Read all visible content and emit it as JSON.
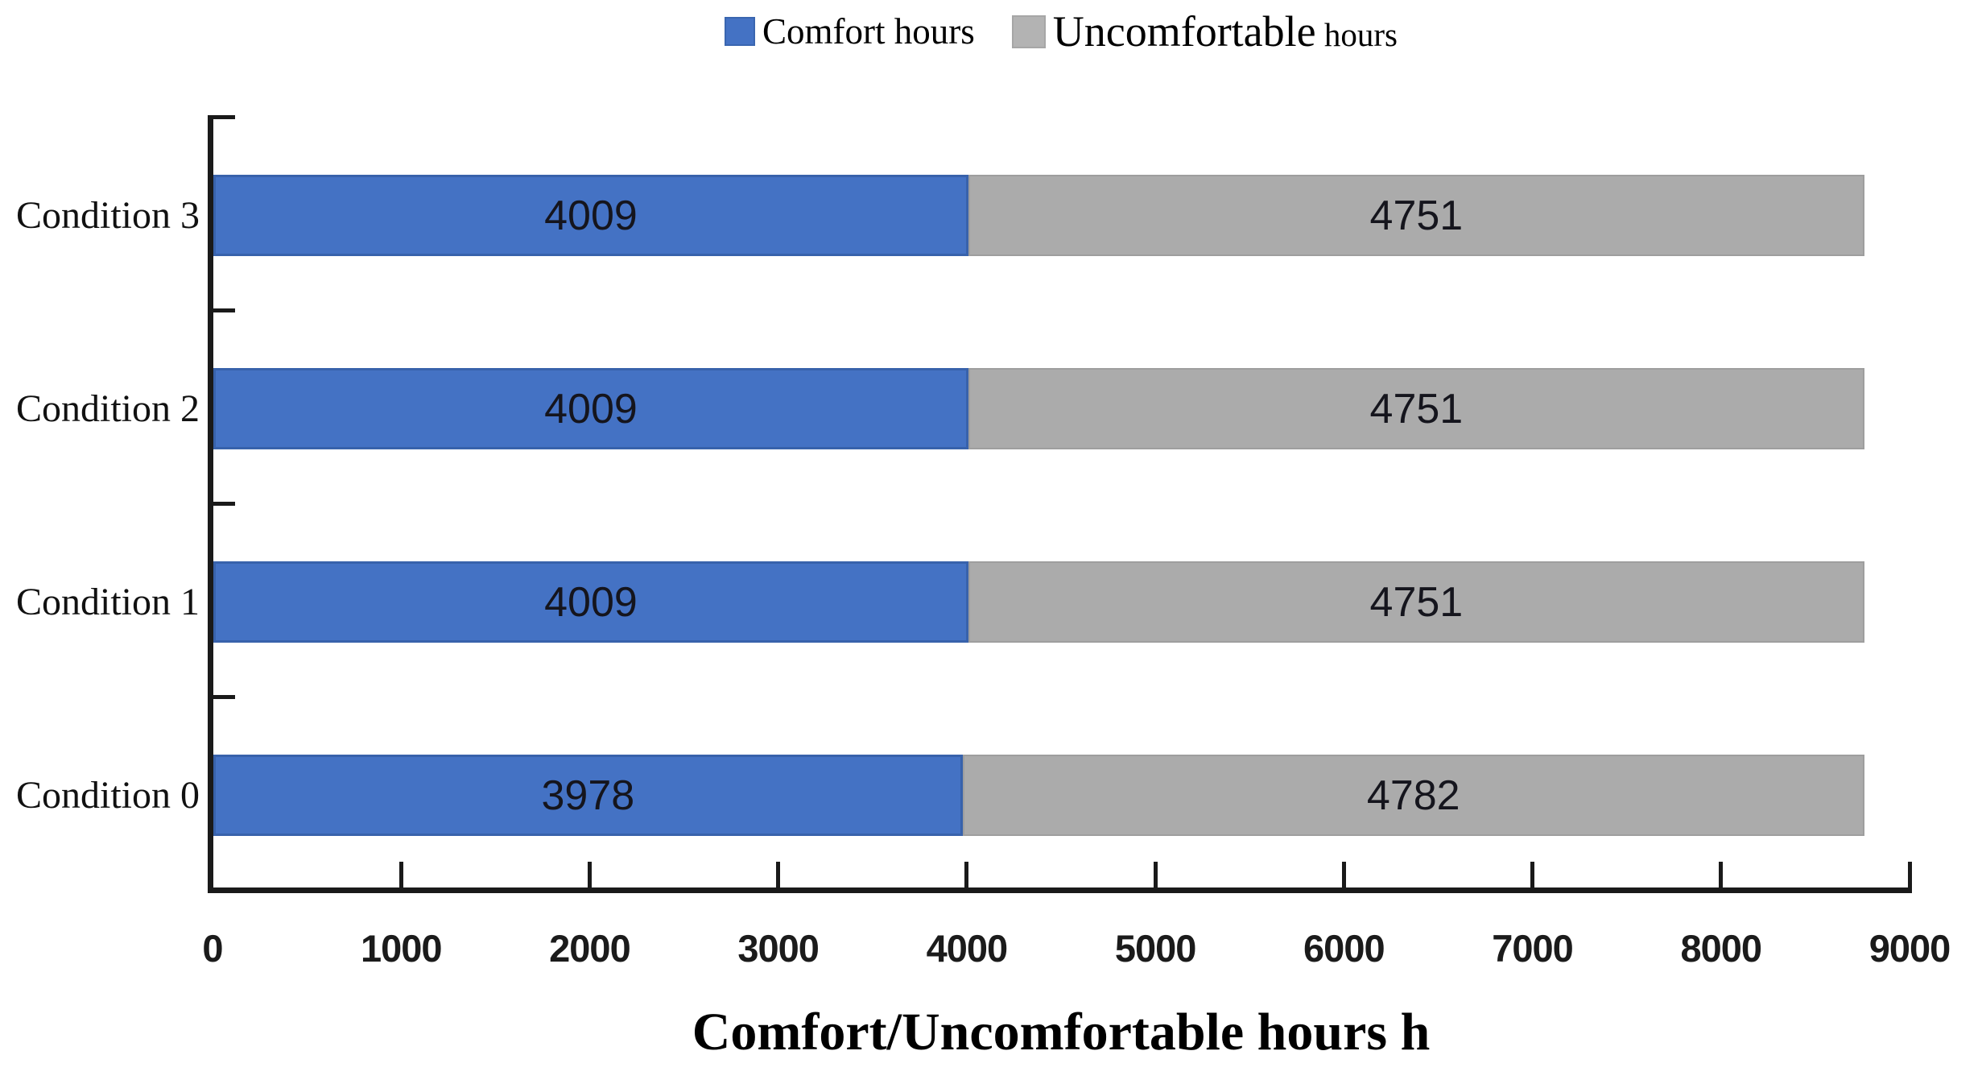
{
  "legend": {
    "items": [
      {
        "label": "Comfort hours",
        "swatch_color": "#4472C4"
      },
      {
        "label_main": "Uncomfortable",
        "label_suffix": " hours",
        "swatch_color": "#B3B3B3"
      }
    ]
  },
  "chart_data": {
    "type": "bar",
    "orientation": "horizontal",
    "stacked": true,
    "title": "",
    "xlabel": "Comfort/Uncomfortable hours h",
    "ylabel": "",
    "categories": [
      "Condition 3",
      "Condition 2",
      "Condition 1",
      "Condition 0"
    ],
    "series": [
      {
        "name": "Comfort hours",
        "color": "#4472C4",
        "values": [
          4009,
          4009,
          4009,
          3978
        ]
      },
      {
        "name": "Uncomfortable hours",
        "color": "#ABABAB",
        "values": [
          4751,
          4751,
          4751,
          4782
        ]
      }
    ],
    "row_totals": [
      8760,
      8760,
      8760,
      8760
    ],
    "xlim": [
      0,
      9000
    ],
    "x_ticks": [
      0,
      1000,
      2000,
      3000,
      4000,
      5000,
      6000,
      7000,
      8000,
      9000
    ],
    "grid": false,
    "legend_position": "top",
    "data_labels": true,
    "data_label_color": "#15151d",
    "axis_color": "#1a1a1a"
  }
}
